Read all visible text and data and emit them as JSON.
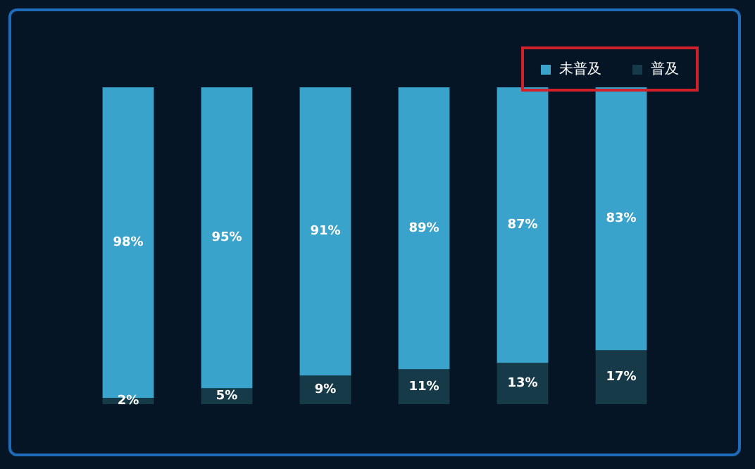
{
  "chart_data": {
    "type": "bar",
    "stacked": true,
    "legend": "top right",
    "categories": [
      null,
      null,
      null,
      null,
      null,
      null
    ],
    "series": [
      {
        "name": "普及",
        "color": "#173a48",
        "values": [
          2,
          5,
          9,
          11,
          13,
          17
        ],
        "value_labels": [
          "2%",
          "5%",
          "9%",
          "11%",
          "13%",
          "17%"
        ]
      },
      {
        "name": "未普及",
        "color": "#3aa3cc",
        "values": [
          98,
          95,
          91,
          89,
          87,
          83
        ],
        "value_labels": [
          "98%",
          "95%",
          "91%",
          "89%",
          "87%",
          "83%"
        ]
      }
    ]
  }
}
